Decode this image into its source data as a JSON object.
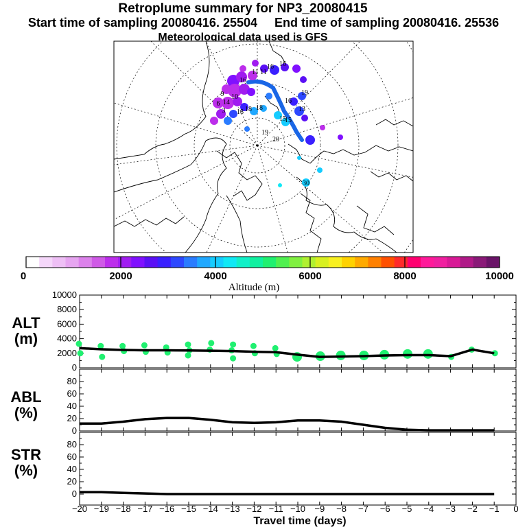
{
  "header": {
    "title": "Retroplume summary for NP3_20080415",
    "sampling_line": "Start time of sampling 20080416. 25504     End time of sampling 20080416. 25536",
    "met_line": "Meteorological data used is GFS"
  },
  "colors": {
    "colorbar": [
      "#ffffff",
      "#f5d7fa",
      "#eebff5",
      "#e6a5f0",
      "#dc82eb",
      "#cf5ae6",
      "#bc2eeb",
      "#a01cf0",
      "#8010ff",
      "#5a10f5",
      "#3a20ff",
      "#2d48ff",
      "#2a7cff",
      "#20a8ff",
      "#15ccff",
      "#10e8f5",
      "#10f0c8",
      "#10f0a0",
      "#20f070",
      "#50f050",
      "#80f040",
      "#b0f030",
      "#d8f020",
      "#f8f020",
      "#ffd200",
      "#ffaa00",
      "#ff8000",
      "#ff5000",
      "#ff2a2a",
      "#ff0070",
      "#ff1a9a",
      "#f020a0",
      "#d81a96",
      "#b01a88",
      "#8a1a78",
      "#6a1468"
    ],
    "alt_points": "#20f070",
    "track": "#1a66e6"
  },
  "colorbar": {
    "tick_labels": [
      "0",
      "2000",
      "4000",
      "6000",
      "8000",
      "10000"
    ],
    "label": "Altitude (m)"
  },
  "map": {
    "point_labels": [
      "16",
      "16",
      "16",
      "11",
      "11",
      "18",
      "18",
      "18",
      "15",
      "15",
      "19",
      "20",
      "10",
      "14",
      "3",
      "30",
      "16",
      "13",
      "19",
      "9",
      "6"
    ]
  },
  "chart_data": [
    {
      "type": "line",
      "panel": "ALT",
      "ylabel": "ALT\n(m)",
      "ylim": [
        0,
        10000
      ],
      "yticks": [
        0,
        2000,
        4000,
        6000,
        8000,
        10000
      ],
      "x": [
        -20,
        -19,
        -18,
        -17,
        -16,
        -15,
        -14,
        -13,
        -12,
        -11,
        -10,
        -9,
        -8,
        -7,
        -6,
        -5,
        -4,
        -3,
        -2,
        -1
      ],
      "values": [
        2700,
        2550,
        2450,
        2400,
        2400,
        2380,
        2350,
        2300,
        2200,
        2150,
        1800,
        1500,
        1550,
        1600,
        1700,
        1750,
        1750,
        1600,
        2500,
        2000
      ],
      "scatter": [
        {
          "x": -20,
          "y": 3300
        },
        {
          "x": -20,
          "y": 2000
        },
        {
          "x": -19,
          "y": 3000
        },
        {
          "x": -19,
          "y": 1500
        },
        {
          "x": -18,
          "y": 3000
        },
        {
          "x": -18,
          "y": 2300
        },
        {
          "x": -17,
          "y": 3100
        },
        {
          "x": -17,
          "y": 2200
        },
        {
          "x": -16,
          "y": 2800
        },
        {
          "x": -16,
          "y": 2100
        },
        {
          "x": -15,
          "y": 3200
        },
        {
          "x": -15,
          "y": 2400
        },
        {
          "x": -15,
          "y": 1700
        },
        {
          "x": -14,
          "y": 3400
        },
        {
          "x": -14,
          "y": 2500
        },
        {
          "x": -13,
          "y": 3200
        },
        {
          "x": -13,
          "y": 2400
        },
        {
          "x": -13,
          "y": 1300
        },
        {
          "x": -12,
          "y": 3000
        },
        {
          "x": -12,
          "y": 2000
        },
        {
          "x": -11,
          "y": 2700
        },
        {
          "x": -11,
          "y": 1900
        },
        {
          "x": -10,
          "y": 1500
        },
        {
          "x": -9,
          "y": 1600
        },
        {
          "x": -8,
          "y": 1700
        },
        {
          "x": -7,
          "y": 1700
        },
        {
          "x": -6,
          "y": 1800
        },
        {
          "x": -5,
          "y": 1900
        },
        {
          "x": -4,
          "y": 1900
        },
        {
          "x": -3,
          "y": 1500
        },
        {
          "x": -2,
          "y": 2500
        },
        {
          "x": -1,
          "y": 2000
        }
      ]
    },
    {
      "type": "line",
      "panel": "ABL",
      "ylabel": "ABL\n(%)",
      "ylim": [
        0,
        100
      ],
      "yticks": [
        0,
        20,
        40,
        60,
        80
      ],
      "x": [
        -20,
        -19,
        -18,
        -17,
        -16,
        -15,
        -14,
        -13,
        -12,
        -11,
        -10,
        -9,
        -8,
        -7,
        -6,
        -5,
        -4,
        -3,
        -2,
        -1
      ],
      "values": [
        12,
        12,
        15,
        19,
        21,
        21,
        18,
        14,
        13,
        14,
        17,
        17,
        15,
        10,
        5,
        2,
        1,
        1,
        1,
        1
      ]
    },
    {
      "type": "line",
      "panel": "STR",
      "ylabel": "STR\n(%)",
      "ylim": [
        0,
        100
      ],
      "yticks": [
        0,
        20,
        40,
        60,
        80
      ],
      "x": [
        -20,
        -19,
        -18,
        -17,
        -16,
        -15,
        -14,
        -13,
        -12,
        -11,
        -10,
        -9,
        -8,
        -7,
        -6,
        -5,
        -4,
        -3,
        -2,
        -1
      ],
      "values": [
        3,
        3,
        2,
        1,
        0,
        0,
        0,
        0,
        0,
        0,
        0,
        0,
        0,
        0,
        0,
        0,
        0,
        0,
        0,
        0
      ]
    }
  ],
  "xaxis": {
    "ticks": [
      -20,
      -19,
      -18,
      -17,
      -16,
      -15,
      -14,
      -13,
      -12,
      -11,
      -10,
      -9,
      -8,
      -7,
      -6,
      -5,
      -4,
      -3,
      -2,
      -1,
      0
    ],
    "tick_labels": [
      "−20",
      "−19",
      "−18",
      "−17",
      "−16",
      "−15",
      "−14",
      "−13",
      "−12",
      "−11",
      "−10",
      "−9",
      "−8",
      "−7",
      "−6",
      "−5",
      "−4",
      "−3",
      "−2",
      "−1",
      "0"
    ],
    "label": "Travel time (days)"
  }
}
